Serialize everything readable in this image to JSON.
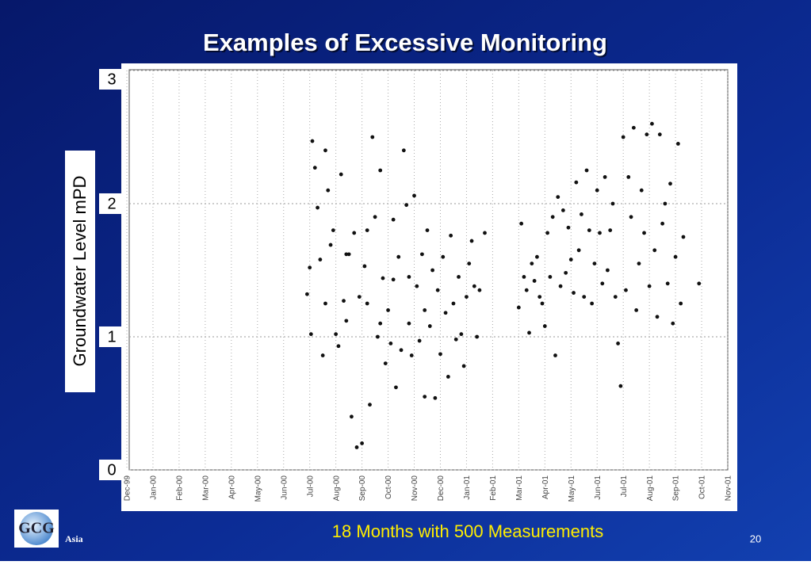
{
  "chart_data": {
    "type": "scatter",
    "title": "Examples of Excessive Monitoring",
    "ylabel": "Groundwater Level mPD",
    "caption": "18 Months with 500 Measurements",
    "xlim": [
      0,
      23
    ],
    "ylim": [
      0,
      3
    ],
    "yticks": [
      0,
      1,
      2,
      3
    ],
    "grid": true,
    "xticks": [
      {
        "value": 0,
        "label": "Dec-99"
      },
      {
        "value": 1,
        "label": "Jan-00"
      },
      {
        "value": 2,
        "label": "Feb-00"
      },
      {
        "value": 3,
        "label": "Mar-00"
      },
      {
        "value": 4,
        "label": "Apr-00"
      },
      {
        "value": 5,
        "label": "May-00"
      },
      {
        "value": 6,
        "label": "Jun-00"
      },
      {
        "value": 7,
        "label": "Jul-00"
      },
      {
        "value": 8,
        "label": "Aug-00"
      },
      {
        "value": 9,
        "label": "Sep-00"
      },
      {
        "value": 10,
        "label": "Oct-00"
      },
      {
        "value": 11,
        "label": "Nov-00"
      },
      {
        "value": 12,
        "label": "Dec-00"
      },
      {
        "value": 13,
        "label": "Jan-01"
      },
      {
        "value": 14,
        "label": "Feb-01"
      },
      {
        "value": 15,
        "label": "Mar-01"
      },
      {
        "value": 16,
        "label": "Apr-01"
      },
      {
        "value": 17,
        "label": "May-01"
      },
      {
        "value": 18,
        "label": "Jun-01"
      },
      {
        "value": 19,
        "label": "Jul-01"
      },
      {
        "value": 20,
        "label": "Aug-01"
      },
      {
        "value": 21,
        "label": "Sep-01"
      },
      {
        "value": 22,
        "label": "Oct-01"
      },
      {
        "value": 23,
        "label": "Nov-01"
      }
    ],
    "series": [
      {
        "color": "#111111",
        "x": [
          6.9,
          7.0,
          7.1,
          7.2,
          7.3,
          7.4,
          7.5,
          7.6,
          7.7,
          7.8,
          7.9,
          8.0,
          8.1,
          8.2,
          8.3,
          8.4,
          8.5,
          8.6,
          8.7,
          8.8,
          8.9,
          9.0,
          9.1,
          9.2,
          9.3,
          9.4,
          9.5,
          9.6,
          9.7,
          9.8,
          9.9,
          10.0,
          10.1,
          10.2,
          10.3,
          10.4,
          10.5,
          10.6,
          10.7,
          10.8,
          10.9,
          11.0,
          11.1,
          11.2,
          11.3,
          11.4,
          11.5,
          11.6,
          11.7,
          11.8,
          11.9,
          12.0,
          12.1,
          12.2,
          12.3,
          12.4,
          12.5,
          12.6,
          12.7,
          12.8,
          12.9,
          13.0,
          13.1,
          13.2,
          13.3,
          13.4,
          13.5,
          13.7,
          7.05,
          7.6,
          8.4,
          9.2,
          9.7,
          10.2,
          10.8,
          11.4,
          15.0,
          15.1,
          15.2,
          15.3,
          15.4,
          15.5,
          15.6,
          15.7,
          15.8,
          15.9,
          16.0,
          16.1,
          16.2,
          16.3,
          16.4,
          16.5,
          16.6,
          16.7,
          16.8,
          16.9,
          17.0,
          17.1,
          17.2,
          17.3,
          17.4,
          17.5,
          17.6,
          17.7,
          17.8,
          17.9,
          18.0,
          18.1,
          18.2,
          18.3,
          18.4,
          18.5,
          18.6,
          18.7,
          18.8,
          18.9,
          19.0,
          19.1,
          19.2,
          19.3,
          19.4,
          19.5,
          19.6,
          19.7,
          19.8,
          19.9,
          20.0,
          20.1,
          20.2,
          20.3,
          20.4,
          20.5,
          20.6,
          20.7,
          20.8,
          20.9,
          21.0,
          21.1,
          21.2,
          21.3,
          21.9
        ],
        "values": [
          1.32,
          1.52,
          2.47,
          2.27,
          1.97,
          1.58,
          0.86,
          2.4,
          2.1,
          1.69,
          1.8,
          1.02,
          0.93,
          2.22,
          1.27,
          1.12,
          1.62,
          0.4,
          1.78,
          0.17,
          1.3,
          0.2,
          1.53,
          1.25,
          0.49,
          2.5,
          1.9,
          1.0,
          2.25,
          1.44,
          0.8,
          1.2,
          0.95,
          1.88,
          0.62,
          1.6,
          0.9,
          2.4,
          1.99,
          1.1,
          0.86,
          2.06,
          1.38,
          0.97,
          1.62,
          1.2,
          1.8,
          1.08,
          1.5,
          0.54,
          1.35,
          0.87,
          1.6,
          1.18,
          0.7,
          1.76,
          1.25,
          0.98,
          1.45,
          1.02,
          0.78,
          1.3,
          1.55,
          1.72,
          1.38,
          1.0,
          1.35,
          1.78,
          1.02,
          1.25,
          1.62,
          1.8,
          1.1,
          1.43,
          1.45,
          0.55,
          1.22,
          1.85,
          1.45,
          1.35,
          1.03,
          1.55,
          1.42,
          1.6,
          1.3,
          1.25,
          1.08,
          1.78,
          1.45,
          1.9,
          0.86,
          2.05,
          1.38,
          1.95,
          1.48,
          1.82,
          1.58,
          1.33,
          2.16,
          1.65,
          1.92,
          1.3,
          2.25,
          1.8,
          1.25,
          1.55,
          2.1,
          1.78,
          1.4,
          2.2,
          1.5,
          1.8,
          2.0,
          1.3,
          0.95,
          0.63,
          2.5,
          1.35,
          2.2,
          1.9,
          2.57,
          1.2,
          1.55,
          2.1,
          1.78,
          2.52,
          1.38,
          2.6,
          1.65,
          1.15,
          2.52,
          1.85,
          2.0,
          1.4,
          2.15,
          1.1,
          1.6,
          2.45,
          1.25,
          1.75,
          1.4
        ]
      }
    ]
  },
  "footer": {
    "logo": "GCG",
    "region": "Asia",
    "page": "20"
  }
}
